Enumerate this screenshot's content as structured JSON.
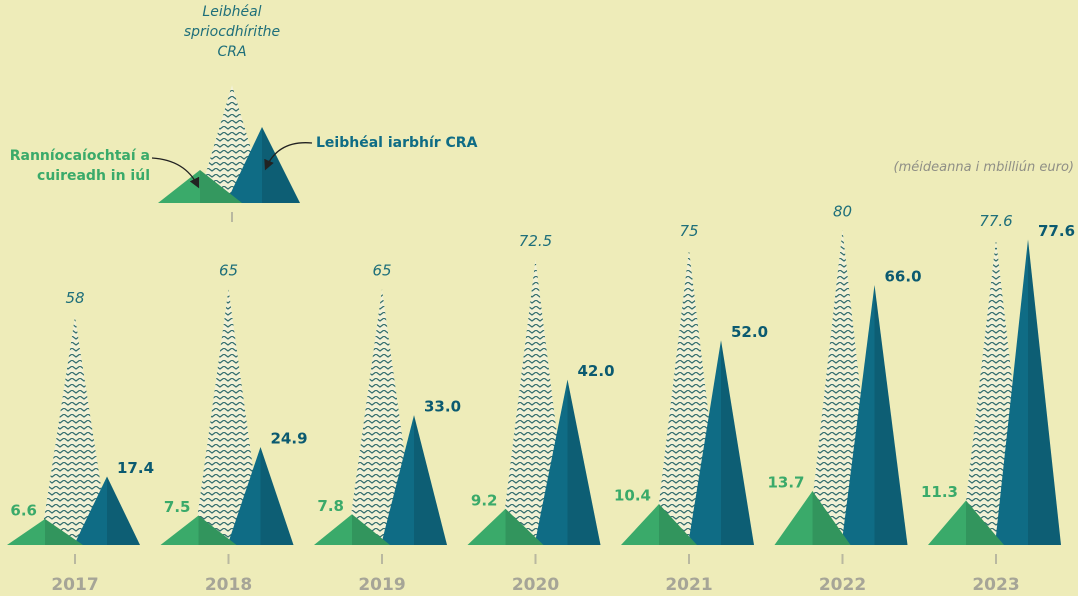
{
  "chart_data": {
    "type": "triangle",
    "note": "(méideanna i mbilliún euro)",
    "categories": [
      "2017",
      "2018",
      "2019",
      "2020",
      "2021",
      "2022",
      "2023"
    ],
    "series": [
      {
        "name": "Ranníocaíochtaí a cuireadh in iúl",
        "color": "#3aaa6a",
        "values": [
          6.6,
          7.5,
          7.8,
          9.2,
          10.4,
          13.7,
          11.3
        ]
      },
      {
        "name": "Leibhéal spriocdhírithe CRA",
        "color": "#2f6b6b",
        "values": [
          58,
          65,
          65,
          72.5,
          75,
          80,
          77.6
        ]
      },
      {
        "name": "Leibhéal iarbhír CRA",
        "color": "#0f6c85",
        "values": [
          17.4,
          24.9,
          33,
          42,
          52,
          66,
          77.6
        ],
        "value_labels": [
          "17.4",
          "24.9",
          "33.0",
          "42.0",
          "52.0",
          "66.0",
          "77.6"
        ]
      }
    ]
  }
}
